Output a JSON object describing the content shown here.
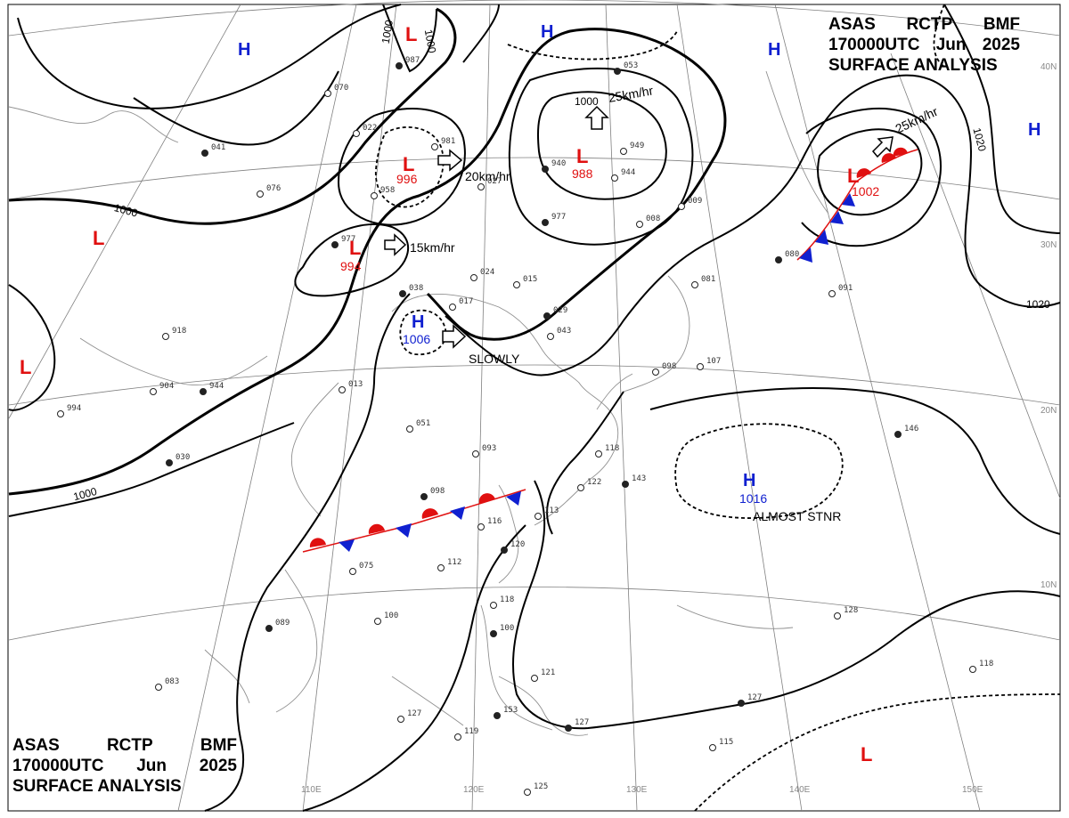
{
  "header": {
    "line1": [
      "ASAS",
      "RCTP",
      "BMF"
    ],
    "line2": [
      "170000UTC",
      "Jun",
      "2025"
    ],
    "line3": "SURFACE ANALYSIS"
  },
  "colors": {
    "high": "#1020d0",
    "low": "#e01010",
    "isobar": "#000000",
    "grid": "#808080",
    "coast": "#909090"
  },
  "lon_labels": [
    "110E",
    "120E",
    "130E",
    "140E",
    "150E"
  ],
  "lat_labels": [
    "40N",
    "30N",
    "20N",
    "10N"
  ],
  "systems": [
    {
      "type": "L",
      "value": "996",
      "motion": "20km/hr"
    },
    {
      "type": "L",
      "value": "994",
      "motion": "15km/hr"
    },
    {
      "type": "H",
      "value": "1006",
      "motion": "SLOWLY"
    },
    {
      "type": "L",
      "value": "988",
      "motion": "25km/hr"
    },
    {
      "type": "L",
      "value": "1002",
      "motion": "25km/hr"
    },
    {
      "type": "H",
      "value": "1016",
      "motion": "ALMOST STNR"
    },
    {
      "type": "L"
    },
    {
      "type": "L"
    },
    {
      "type": "L"
    },
    {
      "type": "L"
    },
    {
      "type": "H"
    },
    {
      "type": "H"
    },
    {
      "type": "H"
    },
    {
      "type": "H"
    }
  ],
  "isobar_labels": [
    "1000",
    "1000",
    "1000",
    "1000",
    "1000",
    "1020",
    "1020"
  ],
  "stations": [
    "987",
    "070",
    "022",
    "041",
    "076",
    "958",
    "977",
    "981",
    "027",
    "940",
    "949",
    "944",
    "977",
    "008",
    "009",
    "053",
    "024",
    "015",
    "038",
    "017",
    "043",
    "029",
    "918",
    "904",
    "944",
    "013",
    "994",
    "030",
    "051",
    "093",
    "098",
    "118",
    "122",
    "143",
    "113",
    "116",
    "120",
    "112",
    "075",
    "089",
    "100",
    "118",
    "100",
    "083",
    "127",
    "153",
    "119",
    "125",
    "127",
    "121",
    "115",
    "127",
    "128",
    "118",
    "146",
    "107",
    "091",
    "080",
    "081",
    "098"
  ]
}
